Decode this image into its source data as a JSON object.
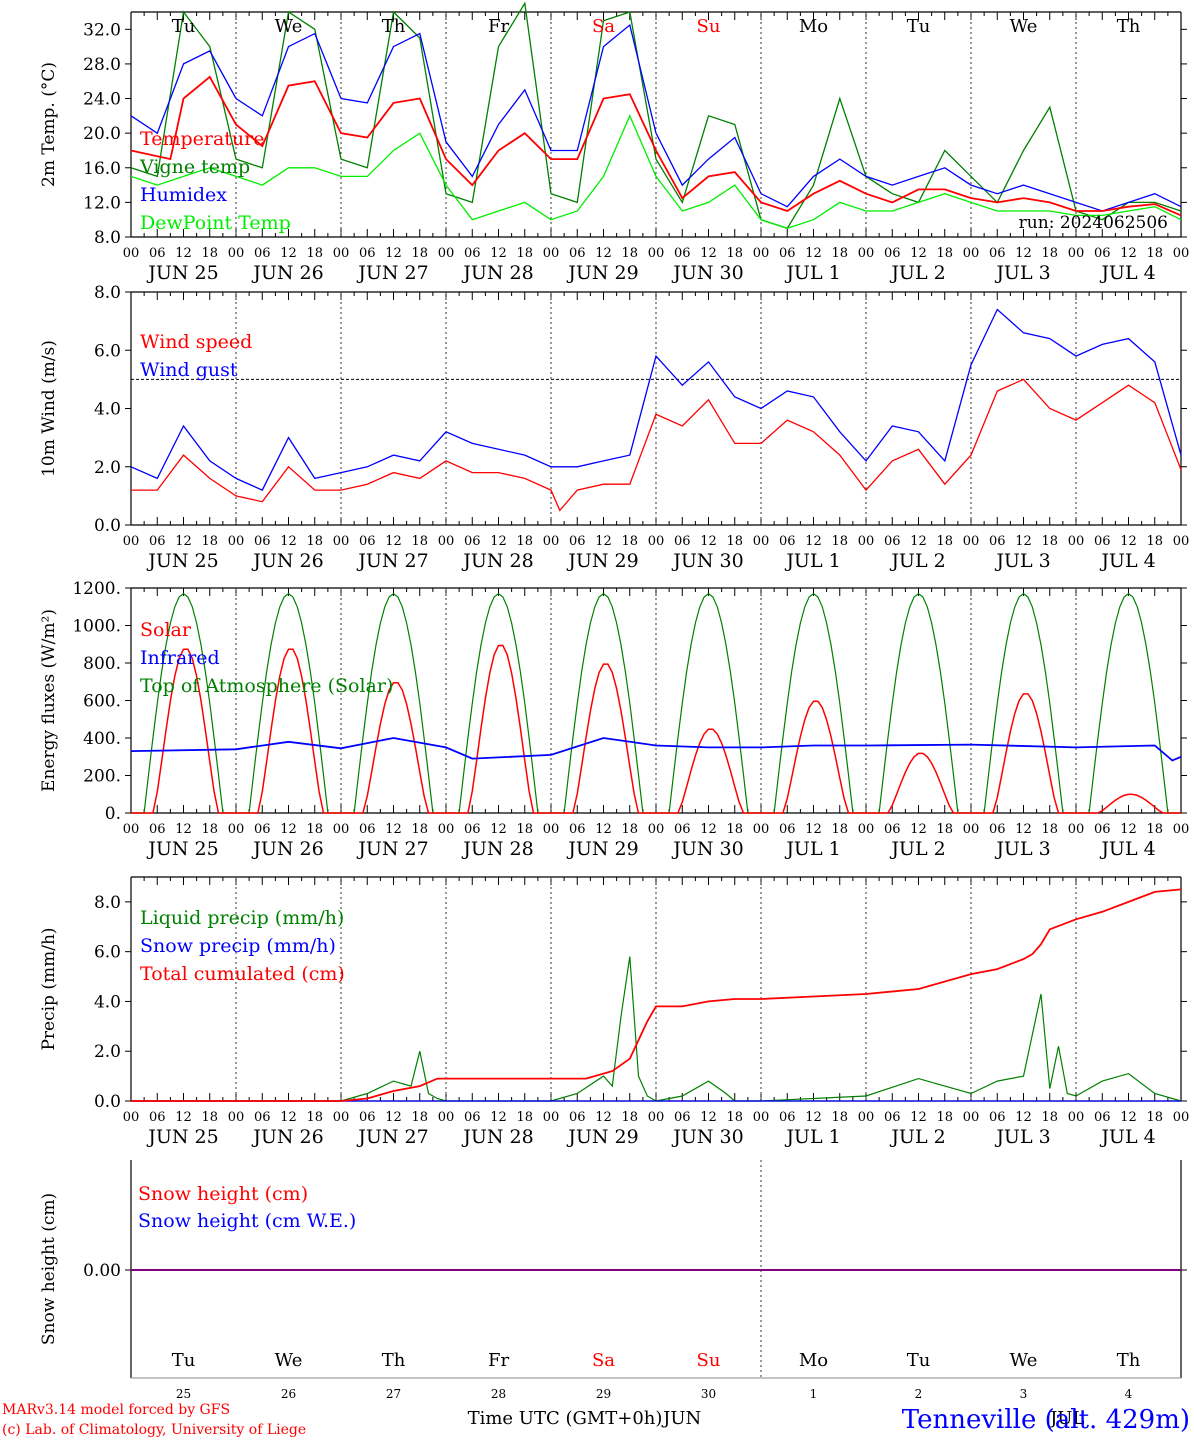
{
  "chart_data": [
    {
      "type": "line",
      "ylabel": "2m Temp. (°C)",
      "ylim": [
        8,
        34
      ],
      "yticks": [
        "8.0",
        "12.0",
        "16.0",
        "20.0",
        "24.0",
        "28.0",
        "32.0"
      ],
      "day_labels": [
        {
          "text": "Tu",
          "color": "#000000"
        },
        {
          "text": "We",
          "color": "#000000"
        },
        {
          "text": "Th",
          "color": "#000000"
        },
        {
          "text": "Fr",
          "color": "#000000"
        },
        {
          "text": "Sa",
          "color": "#ff0000"
        },
        {
          "text": "Su",
          "color": "#ff0000"
        },
        {
          "text": "Mo",
          "color": "#000000"
        },
        {
          "text": "Tu",
          "color": "#000000"
        },
        {
          "text": "We",
          "color": "#000000"
        },
        {
          "text": "Th",
          "color": "#000000"
        }
      ],
      "run_label": "run: 2024062506",
      "series": [
        {
          "name": "Temperature",
          "color": "#ff0000",
          "x": [
            0,
            9,
            12,
            18,
            24,
            30,
            36,
            42,
            48,
            54,
            60,
            66,
            72,
            78,
            84,
            90,
            96,
            102,
            108,
            114,
            120,
            126,
            132,
            138,
            144,
            150,
            156,
            162,
            168,
            174,
            180,
            186,
            192,
            198,
            204,
            210,
            216,
            222,
            228,
            234,
            240
          ],
          "values": [
            18,
            17,
            24,
            26.5,
            21,
            18.5,
            25.5,
            26,
            20,
            19.5,
            23.5,
            24,
            17,
            14,
            18,
            20,
            17,
            17,
            24,
            24.5,
            18,
            12.5,
            15,
            15.5,
            12,
            11,
            13,
            14.5,
            13,
            12,
            13.5,
            13.5,
            12.5,
            12,
            12.5,
            12,
            11,
            11,
            11.5,
            11.8,
            10.5
          ]
        },
        {
          "name": "Vigne temp",
          "color": "#008000",
          "x": [
            0,
            6,
            12,
            18,
            24,
            30,
            36,
            42,
            48,
            54,
            60,
            66,
            72,
            78,
            84,
            90,
            96,
            102,
            108,
            114,
            120,
            126,
            132,
            138,
            144,
            150,
            156,
            162,
            168,
            174,
            180,
            186,
            192,
            198,
            204,
            210,
            216,
            222,
            228,
            234,
            240
          ],
          "values": [
            16,
            15,
            34,
            30,
            17,
            16,
            34,
            32,
            17,
            16,
            34,
            31,
            13,
            12,
            30,
            35,
            13,
            12,
            33,
            34,
            17,
            12,
            22,
            21,
            10,
            9,
            14,
            24,
            15,
            13,
            12,
            18,
            15,
            12,
            18,
            23,
            11,
            10,
            12,
            12,
            11
          ]
        },
        {
          "name": "Humidex",
          "color": "#0000ff",
          "x": [
            0,
            6,
            12,
            18,
            24,
            30,
            36,
            42,
            48,
            54,
            60,
            66,
            72,
            78,
            84,
            90,
            96,
            102,
            108,
            114,
            120,
            126,
            132,
            138,
            144,
            150,
            156,
            162,
            168,
            174,
            180,
            186,
            192,
            198,
            204,
            210,
            216,
            222,
            228,
            234,
            240
          ],
          "values": [
            22,
            20,
            28,
            29.5,
            24,
            22,
            30,
            31.5,
            24,
            23.5,
            30,
            31.5,
            19,
            15,
            21,
            25,
            18,
            18,
            30,
            32.5,
            20,
            14,
            17,
            19.5,
            13,
            11.5,
            15,
            17,
            15,
            14,
            15,
            16,
            14,
            13,
            14,
            13,
            12,
            11,
            12,
            13,
            11.5
          ]
        },
        {
          "name": "DewPoint Temp",
          "color": "#00ee00",
          "x": [
            0,
            6,
            12,
            18,
            24,
            30,
            36,
            42,
            48,
            54,
            60,
            66,
            72,
            78,
            84,
            90,
            96,
            102,
            108,
            114,
            120,
            126,
            132,
            138,
            144,
            150,
            156,
            162,
            168,
            174,
            180,
            186,
            192,
            198,
            204,
            210,
            216,
            222,
            228,
            234,
            240
          ],
          "values": [
            15,
            14,
            15,
            16,
            15,
            14,
            16,
            16,
            15,
            15,
            18,
            20,
            14,
            10,
            11,
            12,
            10,
            11,
            15,
            22,
            15,
            11,
            12,
            14,
            10,
            9,
            10,
            12,
            11,
            11,
            12,
            13,
            12,
            11,
            11,
            11,
            10.5,
            10.5,
            11,
            11.5,
            10
          ]
        }
      ]
    },
    {
      "type": "line",
      "ylabel": "10m Wind (m/s)",
      "ylim": [
        0,
        8
      ],
      "yticks": [
        "0.0",
        "2.0",
        "4.0",
        "6.0",
        "8.0"
      ],
      "ref_line": 5,
      "series": [
        {
          "name": "Wind speed",
          "color": "#ff0000",
          "x": [
            0,
            6,
            12,
            18,
            24,
            30,
            36,
            42,
            48,
            54,
            60,
            66,
            72,
            78,
            84,
            90,
            96,
            98,
            102,
            108,
            114,
            120,
            126,
            132,
            138,
            144,
            150,
            156,
            162,
            168,
            174,
            180,
            186,
            192,
            198,
            204,
            210,
            216,
            222,
            228,
            234,
            240
          ],
          "values": [
            1.2,
            1.2,
            2.4,
            1.6,
            1.0,
            0.8,
            2.0,
            1.2,
            1.2,
            1.4,
            1.8,
            1.6,
            2.2,
            1.8,
            1.8,
            1.6,
            1.2,
            0.5,
            1.2,
            1.4,
            1.4,
            3.8,
            3.4,
            4.3,
            2.8,
            2.8,
            3.6,
            3.2,
            2.4,
            1.2,
            2.2,
            2.6,
            1.4,
            2.4,
            4.6,
            5.0,
            4.0,
            3.6,
            4.2,
            4.8,
            4.2,
            1.9
          ]
        },
        {
          "name": "Wind gust",
          "color": "#0000ff",
          "x": [
            0,
            6,
            12,
            18,
            24,
            30,
            36,
            42,
            48,
            54,
            60,
            66,
            72,
            78,
            84,
            90,
            96,
            102,
            108,
            114,
            120,
            126,
            132,
            138,
            144,
            150,
            156,
            162,
            168,
            174,
            180,
            186,
            192,
            198,
            204,
            210,
            216,
            222,
            228,
            234,
            240
          ],
          "values": [
            2.0,
            1.6,
            3.4,
            2.2,
            1.6,
            1.2,
            3.0,
            1.6,
            1.8,
            2.0,
            2.4,
            2.2,
            3.2,
            2.8,
            2.6,
            2.4,
            2.0,
            2.0,
            2.2,
            2.4,
            5.8,
            4.8,
            5.6,
            4.4,
            4.0,
            4.6,
            4.4,
            3.2,
            2.2,
            3.4,
            3.2,
            2.2,
            5.5,
            7.4,
            6.6,
            6.4,
            5.8,
            6.2,
            6.4,
            5.6,
            2.4
          ]
        }
      ]
    },
    {
      "type": "line",
      "ylabel": "Energy fluxes (W/m²)",
      "ylim": [
        0,
        1200
      ],
      "yticks": [
        "0.",
        "200.",
        "400.",
        "600.",
        "800.",
        "1000.",
        "1200."
      ],
      "series": [
        {
          "name": "Solar",
          "color": "#ff0000",
          "daily_peaks": [
            880,
            880,
            700,
            900,
            800,
            450,
            600,
            320,
            640,
            100
          ]
        },
        {
          "name": "Infrared",
          "color": "#0000ff",
          "x": [
            0,
            24,
            36,
            48,
            60,
            72,
            78,
            96,
            108,
            120,
            132,
            144,
            156,
            168,
            192,
            216,
            234,
            238,
            240
          ],
          "values": [
            330,
            340,
            380,
            345,
            400,
            350,
            290,
            310,
            400,
            360,
            350,
            350,
            360,
            360,
            365,
            350,
            360,
            280,
            300
          ]
        },
        {
          "name": "Top of Atmosphere (Solar)",
          "color": "#008000",
          "daily_peak": 1170
        }
      ]
    },
    {
      "type": "line",
      "ylabel": "Precip (mm/h)",
      "ylim": [
        0,
        9
      ],
      "yticks": [
        "0.0",
        "2.0",
        "4.0",
        "6.0",
        "8.0"
      ],
      "series": [
        {
          "name": "Liquid precip (mm/h)",
          "color": "#008000",
          "x": [
            0,
            24,
            48,
            54,
            60,
            64,
            66,
            68,
            70,
            72,
            96,
            102,
            108,
            110,
            112,
            114,
            116,
            118,
            120,
            126,
            132,
            136,
            138,
            144,
            168,
            180,
            192,
            198,
            204,
            208,
            210,
            212,
            214,
            216,
            222,
            228,
            234,
            240
          ],
          "values": [
            0,
            0,
            0,
            0.3,
            0.8,
            0.6,
            2.0,
            0.3,
            0.1,
            0,
            0,
            0.3,
            1.0,
            0.6,
            3.4,
            5.8,
            1.0,
            0.2,
            0,
            0.2,
            0.8,
            0.3,
            0,
            0,
            0.2,
            0.9,
            0.3,
            0.8,
            1.0,
            4.3,
            0.5,
            2.2,
            0.3,
            0.2,
            0.8,
            1.1,
            0.3,
            0
          ]
        },
        {
          "name": "Snow precip (mm/h)",
          "color": "#0000ff",
          "x": [
            0,
            240
          ],
          "values": [
            0,
            0
          ]
        },
        {
          "name": "Total cumulated (cm)",
          "color": "#ff0000",
          "x": [
            0,
            48,
            54,
            60,
            66,
            70,
            72,
            84,
            96,
            104,
            110,
            114,
            118,
            120,
            126,
            132,
            138,
            144,
            156,
            168,
            180,
            192,
            198,
            204,
            206,
            208,
            210,
            216,
            222,
            228,
            234,
            240
          ],
          "values": [
            0,
            0,
            0.1,
            0.4,
            0.6,
            0.9,
            0.9,
            0.9,
            0.9,
            0.9,
            1.2,
            1.7,
            3.2,
            3.8,
            3.8,
            4.0,
            4.1,
            4.1,
            4.2,
            4.3,
            4.5,
            5.1,
            5.3,
            5.7,
            5.9,
            6.3,
            6.9,
            7.3,
            7.6,
            8.0,
            8.4,
            8.5
          ]
        }
      ]
    },
    {
      "type": "line",
      "ylabel": "Snow height (cm)",
      "ylim": [
        -1,
        1
      ],
      "yticks": [
        "0.00"
      ],
      "series": [
        {
          "name": "Snow height (cm)",
          "color": "#ff0000",
          "x": [
            0,
            240
          ],
          "values": [
            0,
            0
          ]
        },
        {
          "name": "Snow height (cm W.E.)",
          "color": "#0000ff",
          "x": [
            0,
            240
          ],
          "values": [
            0,
            0
          ]
        }
      ],
      "day_labels": [
        {
          "text": "Tu",
          "color": "#000000"
        },
        {
          "text": "We",
          "color": "#000000"
        },
        {
          "text": "Th",
          "color": "#000000"
        },
        {
          "text": "Fr",
          "color": "#000000"
        },
        {
          "text": "Sa",
          "color": "#ff0000"
        },
        {
          "text": "Su",
          "color": "#ff0000"
        },
        {
          "text": "Mo",
          "color": "#000000"
        },
        {
          "text": "Tu",
          "color": "#000000"
        },
        {
          "text": "We",
          "color": "#000000"
        },
        {
          "text": "Th",
          "color": "#000000"
        }
      ],
      "day_numbers": [
        "25",
        "26",
        "27",
        "28",
        "29",
        "30",
        "1",
        "2",
        "3",
        "4"
      ],
      "month_labels": [
        "JUN",
        "JUL"
      ]
    }
  ],
  "time_axis": {
    "hour_ticks": [
      "00",
      "06",
      "12",
      "18"
    ],
    "final_tick": "00",
    "dates": [
      "JUN 25",
      "JUN 26",
      "JUN 27",
      "JUN 28",
      "JUN 29",
      "JUN 30",
      "JUL  1",
      "JUL  2",
      "JUL  3",
      "JUL  4"
    ],
    "xlabel": "Time UTC (GMT+0h)"
  },
  "footer": {
    "credit_line1": "MARv3.14 model forced by GFS",
    "credit_line2": "(c) Lab. of Climatology, University of Liege",
    "station": "Tenneville (alt. 429m)"
  },
  "colors": {
    "red": "#ff0000",
    "green": "#008000",
    "blue": "#0000ff",
    "light_green": "#00ee00",
    "purple": "#800080"
  }
}
